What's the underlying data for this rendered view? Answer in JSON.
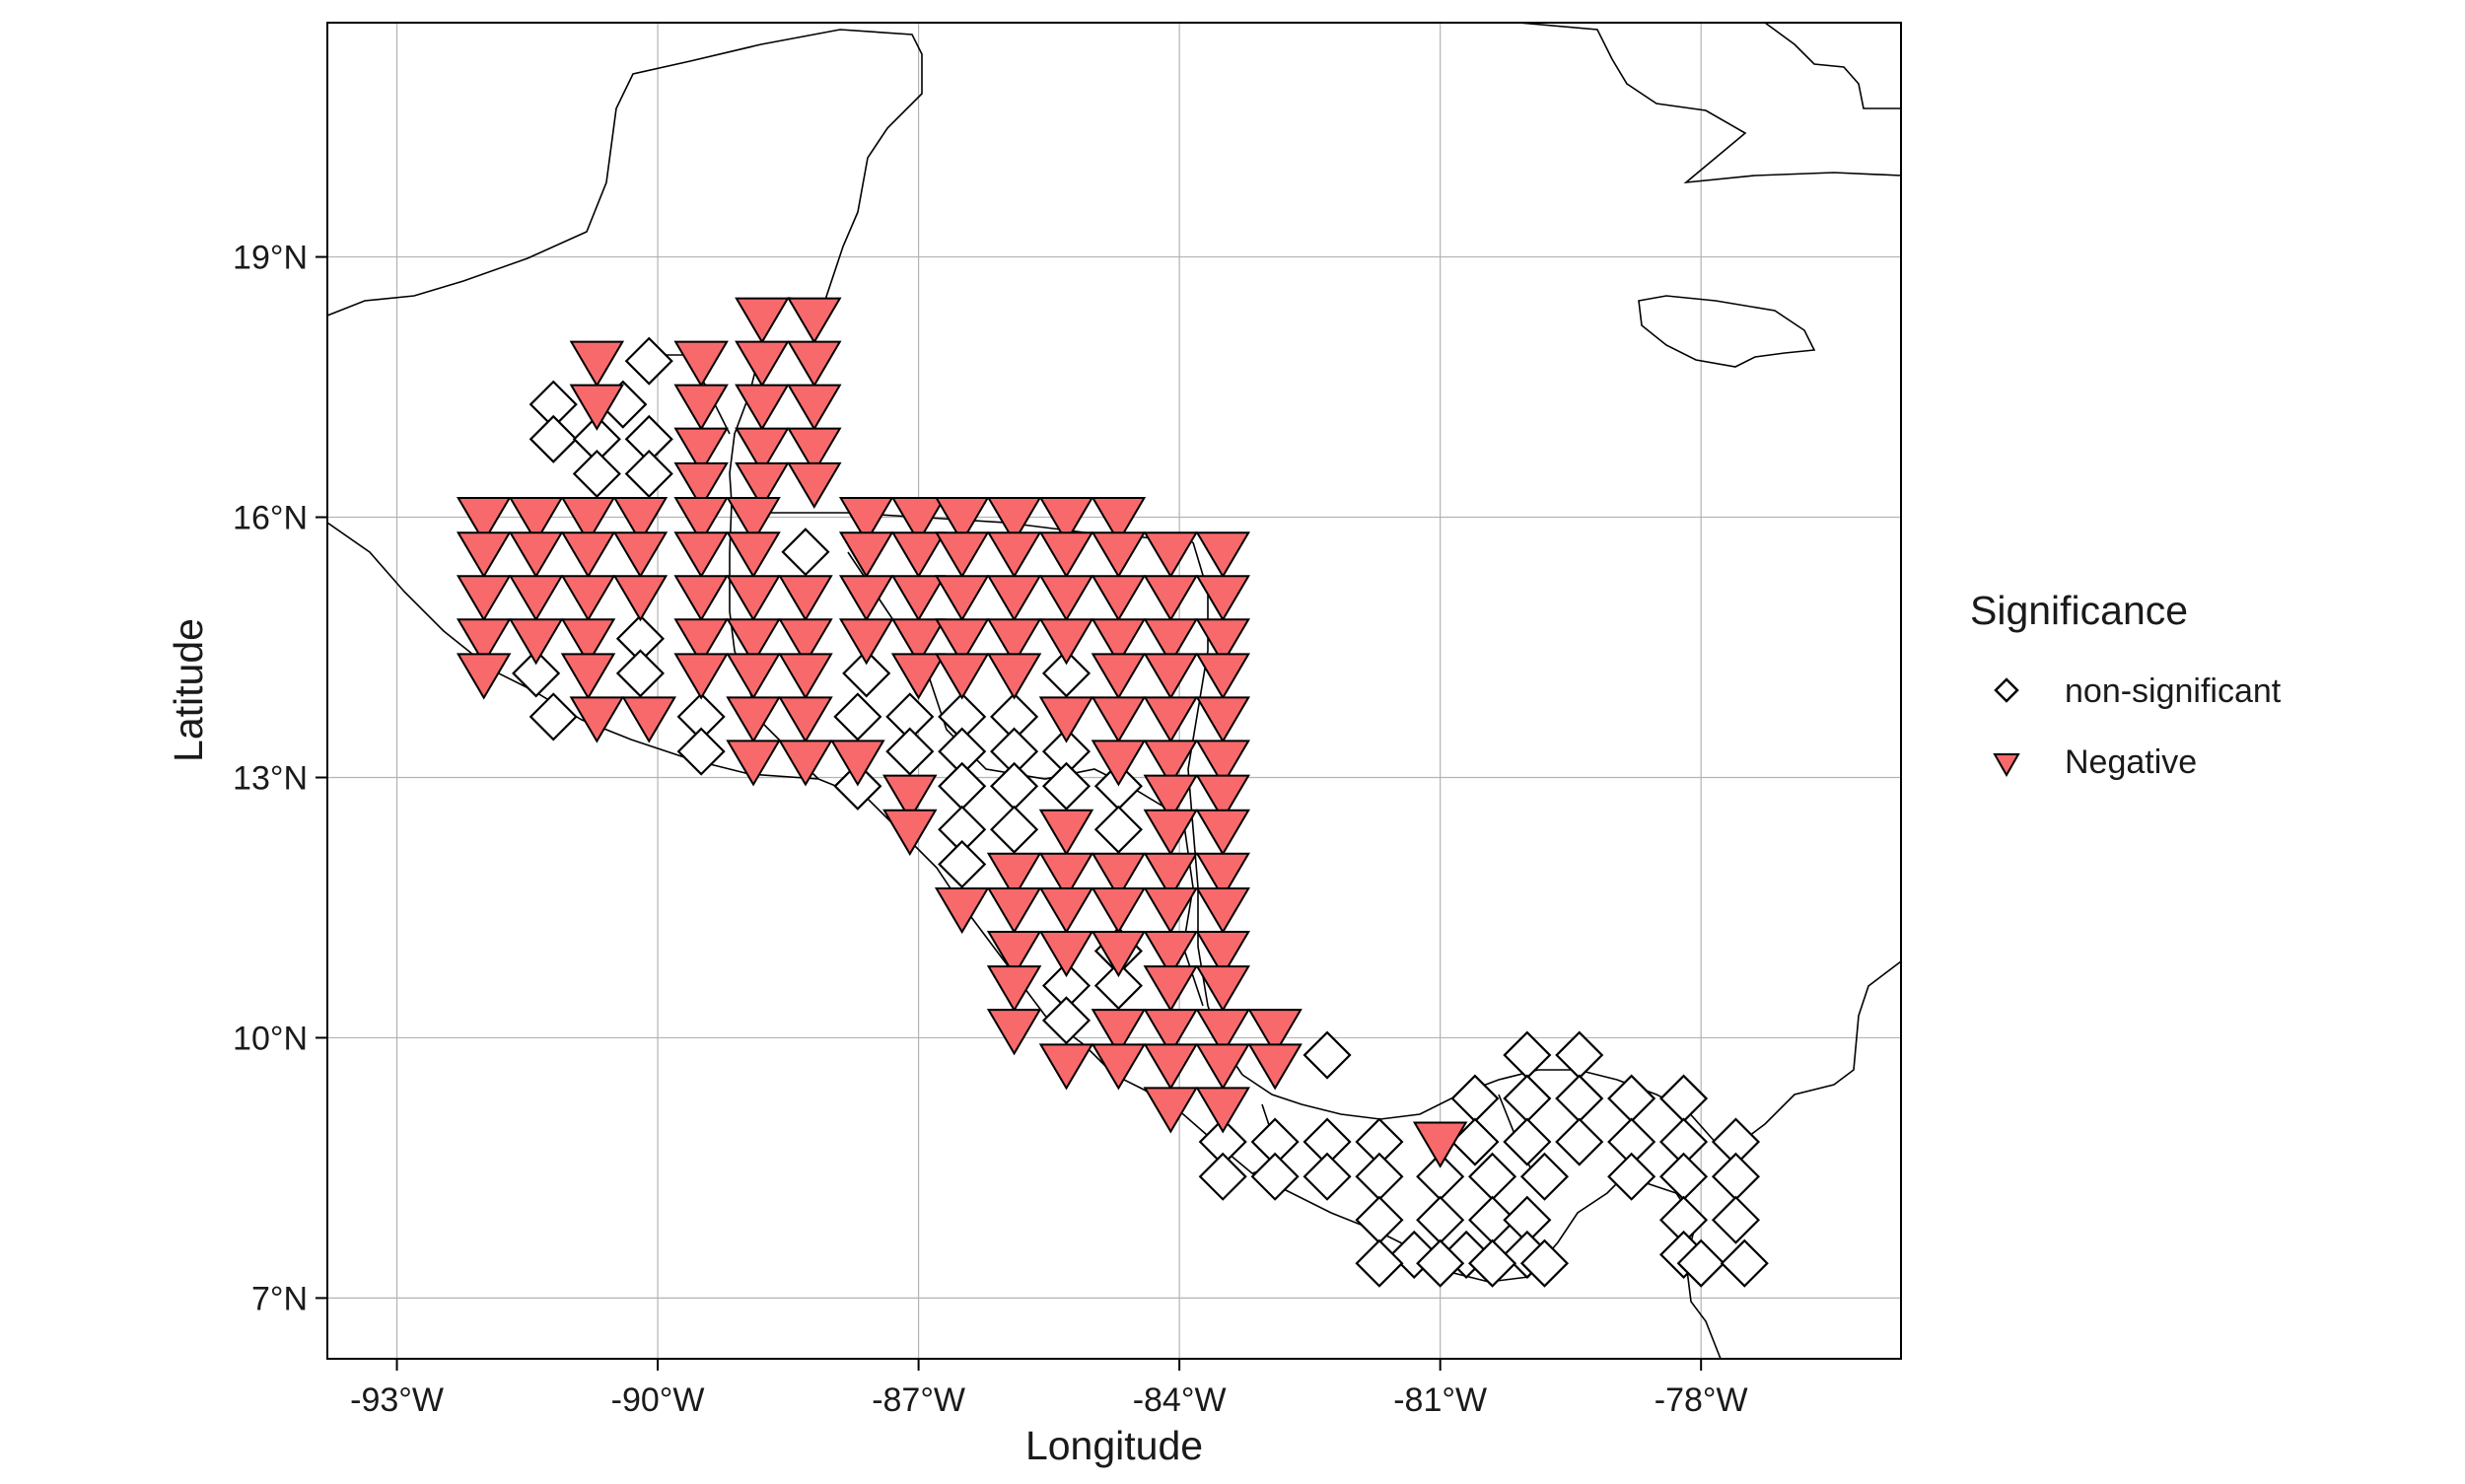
{
  "chart_data": {
    "type": "scatter",
    "xlabel": "Longitude",
    "ylabel": "Latitude",
    "xlim": [
      -93.8,
      -75.7
    ],
    "ylim": [
      6.3,
      21.7
    ],
    "x_ticks": [
      {
        "value": -93,
        "label": "-93°W"
      },
      {
        "value": -90,
        "label": "-90°W"
      },
      {
        "value": -87,
        "label": "-87°W"
      },
      {
        "value": -84,
        "label": "-84°W"
      },
      {
        "value": -81,
        "label": "-81°W"
      },
      {
        "value": -78,
        "label": "-78°W"
      }
    ],
    "y_ticks": [
      {
        "value": 7,
        "label": "7°N"
      },
      {
        "value": 10,
        "label": "10°N"
      },
      {
        "value": 13,
        "label": "13°N"
      },
      {
        "value": 16,
        "label": "16°N"
      },
      {
        "value": 19,
        "label": "19°N"
      }
    ],
    "grid": true,
    "legend": {
      "title": "Significance",
      "position": "right",
      "entries": [
        {
          "label": "non-significant",
          "marker": "diamond",
          "fill": "#ffffff"
        },
        {
          "label": "Negative",
          "marker": "triangle-down",
          "fill": "#f8696b"
        }
      ]
    },
    "colors": {
      "negative": "#f8696b",
      "non_significant": "#ffffff",
      "stroke": "#000000"
    },
    "series": [
      {
        "name": "Negative",
        "marker": "triangle-down",
        "points": [
          [
            -88.8,
            18.3
          ],
          [
            -88.2,
            18.3
          ],
          [
            -90.7,
            17.8
          ],
          [
            -89.5,
            17.8
          ],
          [
            -88.8,
            17.8
          ],
          [
            -88.2,
            17.8
          ],
          [
            -90.7,
            17.3
          ],
          [
            -89.5,
            17.3
          ],
          [
            -88.8,
            17.3
          ],
          [
            -88.2,
            17.3
          ],
          [
            -89.5,
            16.8
          ],
          [
            -88.8,
            16.8
          ],
          [
            -88.2,
            16.8
          ],
          [
            -89.5,
            16.4
          ],
          [
            -88.8,
            16.4
          ],
          [
            -88.2,
            16.4
          ],
          [
            -92.0,
            16.0
          ],
          [
            -91.4,
            16.0
          ],
          [
            -90.8,
            16.0
          ],
          [
            -90.2,
            16.0
          ],
          [
            -89.5,
            16.0
          ],
          [
            -88.9,
            16.0
          ],
          [
            -87.6,
            16.0
          ],
          [
            -87.0,
            16.0
          ],
          [
            -86.5,
            16.0
          ],
          [
            -85.9,
            16.0
          ],
          [
            -85.3,
            16.0
          ],
          [
            -84.7,
            16.0
          ],
          [
            -92.0,
            15.6
          ],
          [
            -91.4,
            15.6
          ],
          [
            -90.8,
            15.6
          ],
          [
            -90.2,
            15.6
          ],
          [
            -89.5,
            15.6
          ],
          [
            -88.9,
            15.6
          ],
          [
            -87.6,
            15.6
          ],
          [
            -87.0,
            15.6
          ],
          [
            -86.5,
            15.6
          ],
          [
            -85.9,
            15.6
          ],
          [
            -85.3,
            15.6
          ],
          [
            -84.7,
            15.6
          ],
          [
            -84.1,
            15.6
          ],
          [
            -83.5,
            15.6
          ],
          [
            -92.0,
            15.1
          ],
          [
            -91.4,
            15.1
          ],
          [
            -90.8,
            15.1
          ],
          [
            -90.2,
            15.1
          ],
          [
            -89.5,
            15.1
          ],
          [
            -88.9,
            15.1
          ],
          [
            -88.3,
            15.1
          ],
          [
            -87.6,
            15.1
          ],
          [
            -87.0,
            15.1
          ],
          [
            -86.5,
            15.1
          ],
          [
            -85.9,
            15.1
          ],
          [
            -85.3,
            15.1
          ],
          [
            -84.7,
            15.1
          ],
          [
            -84.1,
            15.1
          ],
          [
            -83.5,
            15.1
          ],
          [
            -92.0,
            14.6
          ],
          [
            -91.4,
            14.6
          ],
          [
            -90.8,
            14.6
          ],
          [
            -89.5,
            14.6
          ],
          [
            -88.9,
            14.6
          ],
          [
            -88.3,
            14.6
          ],
          [
            -87.6,
            14.6
          ],
          [
            -87.0,
            14.6
          ],
          [
            -86.5,
            14.6
          ],
          [
            -85.9,
            14.6
          ],
          [
            -85.3,
            14.6
          ],
          [
            -84.7,
            14.6
          ],
          [
            -84.1,
            14.6
          ],
          [
            -83.5,
            14.6
          ],
          [
            -92.0,
            14.2
          ],
          [
            -90.8,
            14.2
          ],
          [
            -89.5,
            14.2
          ],
          [
            -88.9,
            14.2
          ],
          [
            -88.3,
            14.2
          ],
          [
            -87.0,
            14.2
          ],
          [
            -86.5,
            14.2
          ],
          [
            -85.9,
            14.2
          ],
          [
            -84.7,
            14.2
          ],
          [
            -84.1,
            14.2
          ],
          [
            -83.5,
            14.2
          ],
          [
            -90.7,
            13.7
          ],
          [
            -90.1,
            13.7
          ],
          [
            -88.9,
            13.7
          ],
          [
            -88.3,
            13.7
          ],
          [
            -85.3,
            13.7
          ],
          [
            -84.7,
            13.7
          ],
          [
            -84.1,
            13.7
          ],
          [
            -83.5,
            13.7
          ],
          [
            -88.9,
            13.2
          ],
          [
            -88.3,
            13.2
          ],
          [
            -87.7,
            13.2
          ],
          [
            -84.7,
            13.2
          ],
          [
            -84.1,
            13.2
          ],
          [
            -83.5,
            13.2
          ],
          [
            -87.1,
            12.8
          ],
          [
            -84.1,
            12.8
          ],
          [
            -83.5,
            12.8
          ],
          [
            -87.1,
            12.4
          ],
          [
            -85.3,
            12.4
          ],
          [
            -84.1,
            12.4
          ],
          [
            -83.5,
            12.4
          ],
          [
            -85.9,
            11.9
          ],
          [
            -85.3,
            11.9
          ],
          [
            -84.7,
            11.9
          ],
          [
            -84.1,
            11.9
          ],
          [
            -83.5,
            11.9
          ],
          [
            -86.5,
            11.5
          ],
          [
            -85.9,
            11.5
          ],
          [
            -85.3,
            11.5
          ],
          [
            -84.7,
            11.5
          ],
          [
            -84.1,
            11.5
          ],
          [
            -83.5,
            11.5
          ],
          [
            -85.9,
            11.0
          ],
          [
            -85.3,
            11.0
          ],
          [
            -84.7,
            11.0
          ],
          [
            -84.1,
            11.0
          ],
          [
            -83.5,
            11.0
          ],
          [
            -85.9,
            10.6
          ],
          [
            -84.1,
            10.6
          ],
          [
            -83.5,
            10.6
          ],
          [
            -85.9,
            10.1
          ],
          [
            -84.7,
            10.1
          ],
          [
            -84.1,
            10.1
          ],
          [
            -83.5,
            10.1
          ],
          [
            -82.9,
            10.1
          ],
          [
            -85.3,
            9.7
          ],
          [
            -84.7,
            9.7
          ],
          [
            -84.1,
            9.7
          ],
          [
            -83.5,
            9.7
          ],
          [
            -82.9,
            9.7
          ],
          [
            -84.1,
            9.2
          ],
          [
            -83.5,
            9.2
          ],
          [
            -81.0,
            8.8
          ]
        ]
      },
      {
        "name": "non-significant",
        "marker": "diamond",
        "points": [
          [
            -90.1,
            17.8
          ],
          [
            -91.2,
            17.3
          ],
          [
            -90.4,
            17.3
          ],
          [
            -91.2,
            16.9
          ],
          [
            -90.7,
            16.9
          ],
          [
            -90.1,
            16.9
          ],
          [
            -90.7,
            16.5
          ],
          [
            -90.1,
            16.5
          ],
          [
            -88.3,
            15.6
          ],
          [
            -90.2,
            14.6
          ],
          [
            -91.4,
            14.2
          ],
          [
            -90.2,
            14.2
          ],
          [
            -87.6,
            14.2
          ],
          [
            -85.3,
            14.2
          ],
          [
            -91.2,
            13.7
          ],
          [
            -89.5,
            13.7
          ],
          [
            -87.7,
            13.7
          ],
          [
            -87.1,
            13.7
          ],
          [
            -86.5,
            13.7
          ],
          [
            -85.9,
            13.7
          ],
          [
            -89.5,
            13.3
          ],
          [
            -87.1,
            13.3
          ],
          [
            -86.5,
            13.3
          ],
          [
            -85.9,
            13.3
          ],
          [
            -85.3,
            13.3
          ],
          [
            -87.7,
            12.9
          ],
          [
            -86.5,
            12.9
          ],
          [
            -85.9,
            12.9
          ],
          [
            -85.3,
            12.9
          ],
          [
            -84.7,
            12.9
          ],
          [
            -86.5,
            12.4
          ],
          [
            -85.9,
            12.4
          ],
          [
            -84.7,
            12.4
          ],
          [
            -86.5,
            12.0
          ],
          [
            -84.7,
            11.0
          ],
          [
            -85.3,
            10.6
          ],
          [
            -84.7,
            10.6
          ],
          [
            -85.3,
            10.2
          ],
          [
            -82.3,
            9.8
          ],
          [
            -80.0,
            9.8
          ],
          [
            -79.4,
            9.8
          ],
          [
            -80.6,
            9.3
          ],
          [
            -80.0,
            9.3
          ],
          [
            -79.4,
            9.3
          ],
          [
            -78.8,
            9.3
          ],
          [
            -78.2,
            9.3
          ],
          [
            -83.5,
            8.8
          ],
          [
            -82.9,
            8.8
          ],
          [
            -82.3,
            8.8
          ],
          [
            -81.7,
            8.8
          ],
          [
            -80.6,
            8.8
          ],
          [
            -80.0,
            8.8
          ],
          [
            -79.4,
            8.8
          ],
          [
            -78.8,
            8.8
          ],
          [
            -78.2,
            8.8
          ],
          [
            -77.6,
            8.8
          ],
          [
            -83.5,
            8.4
          ],
          [
            -82.9,
            8.4
          ],
          [
            -82.3,
            8.4
          ],
          [
            -81.7,
            8.4
          ],
          [
            -81.0,
            8.4
          ],
          [
            -80.4,
            8.4
          ],
          [
            -79.8,
            8.4
          ],
          [
            -78.8,
            8.4
          ],
          [
            -78.2,
            8.4
          ],
          [
            -77.6,
            8.4
          ],
          [
            -81.7,
            7.9
          ],
          [
            -81.0,
            7.9
          ],
          [
            -80.4,
            7.9
          ],
          [
            -80.0,
            7.9
          ],
          [
            -78.2,
            7.9
          ],
          [
            -77.6,
            7.9
          ],
          [
            -81.3,
            7.5
          ],
          [
            -80.7,
            7.5
          ],
          [
            -80.0,
            7.5
          ],
          [
            -78.2,
            7.5
          ],
          [
            -81.7,
            7.4
          ],
          [
            -81.0,
            7.4
          ],
          [
            -80.4,
            7.4
          ],
          [
            -79.8,
            7.4
          ],
          [
            -78.0,
            7.4
          ],
          [
            -77.5,
            7.4
          ]
        ]
      }
    ]
  }
}
